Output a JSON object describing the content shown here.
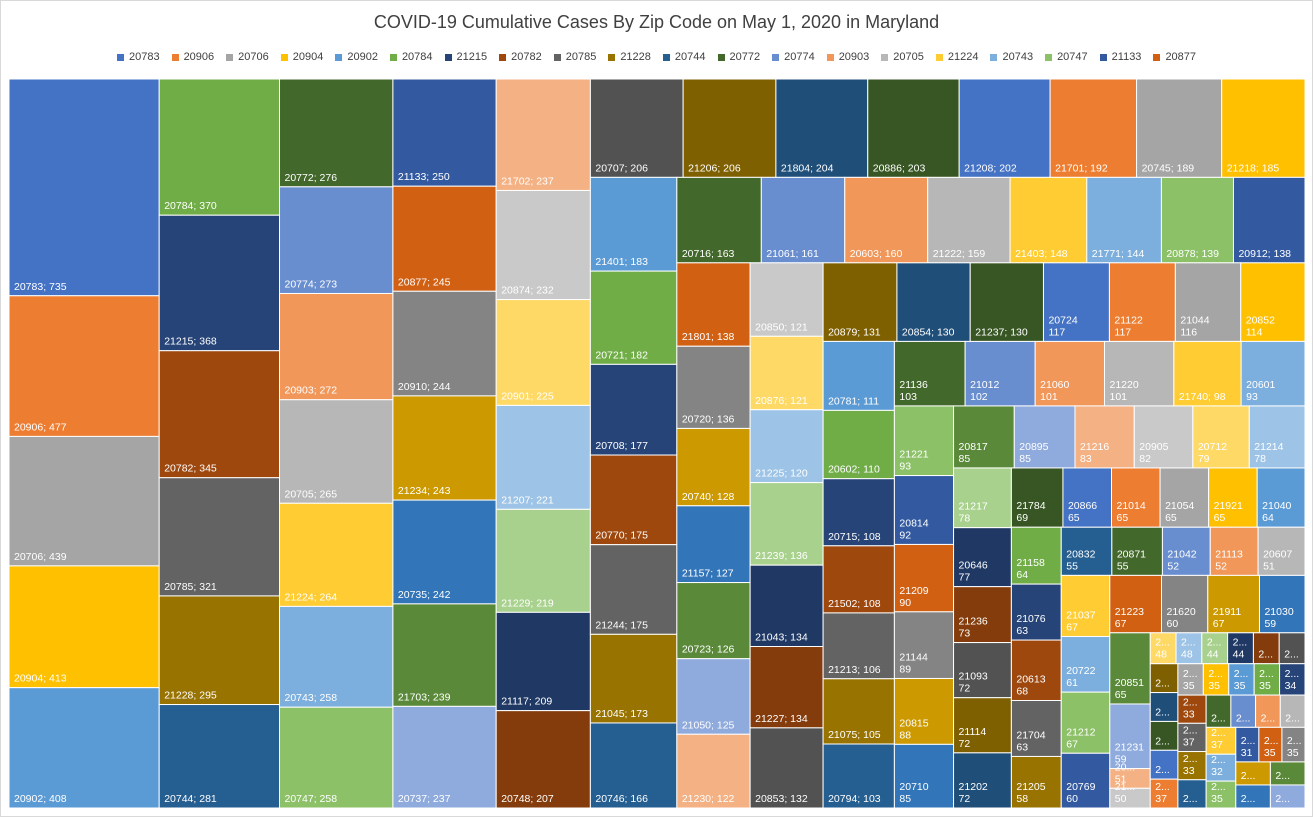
{
  "chart_data": {
    "type": "treemap",
    "title": "COVID-19 Cumulative Cases By Zip Code on May 1, 2020 in Maryland",
    "legend_position": "top",
    "legend": [
      "20783",
      "20906",
      "20706",
      "20904",
      "20902",
      "20784",
      "21215",
      "20782",
      "20785",
      "21228",
      "20744",
      "20772",
      "20774",
      "20903",
      "20705",
      "21224",
      "20743",
      "20747",
      "21133",
      "20877"
    ],
    "palette": [
      "#4472C4",
      "#ED7D31",
      "#A5A5A5",
      "#FFC000",
      "#5B9BD5",
      "#70AD47",
      "#264478",
      "#9E480E",
      "#636363",
      "#997300",
      "#255E91",
      "#43682B",
      "#698ED0",
      "#F1975A",
      "#B7B7B7",
      "#FFCD33",
      "#7CAFDD",
      "#8CC168",
      "#335AA1",
      "#D26012",
      "#848484",
      "#CC9A00",
      "#3275B9",
      "#5A8A39",
      "#8FAADC",
      "#F4B183",
      "#C9C9C9",
      "#FFD966",
      "#9DC3E6",
      "#A9D18E",
      "#1F3864",
      "#843C0C",
      "#525252",
      "#7F6000",
      "#1F4E79",
      "#375623"
    ],
    "items": [
      {
        "zip": "20783",
        "value": 735,
        "label": "20783; 735"
      },
      {
        "zip": "20906",
        "value": 477,
        "label": "20906; 477"
      },
      {
        "zip": "20706",
        "value": 439,
        "label": "20706; 439"
      },
      {
        "zip": "20904",
        "value": 413,
        "label": "20904; 413"
      },
      {
        "zip": "20902",
        "value": 408,
        "label": "20902; 408"
      },
      {
        "zip": "20784",
        "value": 370,
        "label": "20784; 370"
      },
      {
        "zip": "21215",
        "value": 368,
        "label": "21215; 368"
      },
      {
        "zip": "20782",
        "value": 345,
        "label": "20782; 345"
      },
      {
        "zip": "20785",
        "value": 321,
        "label": "20785; 321"
      },
      {
        "zip": "21228",
        "value": 295,
        "label": "21228; 295"
      },
      {
        "zip": "20744",
        "value": 281,
        "label": "20744; 281"
      },
      {
        "zip": "20772",
        "value": 276,
        "label": "20772; 276"
      },
      {
        "zip": "20774",
        "value": 273,
        "label": "20774; 273"
      },
      {
        "zip": "20903",
        "value": 272,
        "label": "20903; 272"
      },
      {
        "zip": "20705",
        "value": 265,
        "label": "20705; 265"
      },
      {
        "zip": "21224",
        "value": 264,
        "label": "21224; 264"
      },
      {
        "zip": "20743",
        "value": 258,
        "label": "20743; 258"
      },
      {
        "zip": "20747",
        "value": 258,
        "label": "20747; 258"
      },
      {
        "zip": "21133",
        "value": 250,
        "label": "21133; 250"
      },
      {
        "zip": "20877",
        "value": 245,
        "label": "20877; 245"
      },
      {
        "zip": "20910",
        "value": 244,
        "label": "20910; 244"
      },
      {
        "zip": "21234",
        "value": 243,
        "label": "21234; 243"
      },
      {
        "zip": "20735",
        "value": 242,
        "label": "20735; 242"
      },
      {
        "zip": "21703",
        "value": 239,
        "label": "21703; 239"
      },
      {
        "zip": "20737",
        "value": 237,
        "label": "20737; 237"
      },
      {
        "zip": "21702",
        "value": 237,
        "label": "21702; 237"
      },
      {
        "zip": "20874",
        "value": 232,
        "label": "20874; 232"
      },
      {
        "zip": "20901",
        "value": 225,
        "label": "20901; 225"
      },
      {
        "zip": "21207",
        "value": 221,
        "label": "21207; 221"
      },
      {
        "zip": "21229",
        "value": 219,
        "label": "21229; 219"
      },
      {
        "zip": "21117",
        "value": 209,
        "label": "21117; 209"
      },
      {
        "zip": "20748",
        "value": 207,
        "label": "20748; 207"
      },
      {
        "zip": "20707",
        "value": 206,
        "label": "20707; 206"
      },
      {
        "zip": "21206",
        "value": 206,
        "label": "21206; 206"
      },
      {
        "zip": "21804",
        "value": 204,
        "label": "21804; 204"
      },
      {
        "zip": "20886",
        "value": 203,
        "label": "20886; 203"
      },
      {
        "zip": "21208",
        "value": 202,
        "label": "21208; 202"
      },
      {
        "zip": "21701",
        "value": 192,
        "label": "21701; 192"
      },
      {
        "zip": "20745",
        "value": 189,
        "label": "20745; 189"
      },
      {
        "zip": "21218",
        "value": 185,
        "label": "21218; 185"
      },
      {
        "zip": "21401",
        "value": 183,
        "label": "21401; 183"
      },
      {
        "zip": "20721",
        "value": 182,
        "label": "20721; 182"
      },
      {
        "zip": "20708",
        "value": 177,
        "label": "20708; 177"
      },
      {
        "zip": "20770",
        "value": 175,
        "label": "20770; 175"
      },
      {
        "zip": "21244",
        "value": 175,
        "label": "21244; 175"
      },
      {
        "zip": "21045",
        "value": 173,
        "label": "21045; 173"
      },
      {
        "zip": "20746",
        "value": 166,
        "label": "20746; 166"
      },
      {
        "zip": "20716",
        "value": 163,
        "label": "20716; 163"
      },
      {
        "zip": "21061",
        "value": 161,
        "label": "21061; 161"
      },
      {
        "zip": "20603",
        "value": 160,
        "label": "20603; 160"
      },
      {
        "zip": "21222",
        "value": 159,
        "label": "21222; 159"
      },
      {
        "zip": "21403",
        "value": 148,
        "label": "21403; 148"
      },
      {
        "zip": "21771",
        "value": 144,
        "label": "21771; 144"
      },
      {
        "zip": "20878",
        "value": 139,
        "label": "20878; 139"
      },
      {
        "zip": "20912",
        "value": 138,
        "label": "20912; 138"
      },
      {
        "zip": "21801",
        "value": 138,
        "label": "21801; 138"
      },
      {
        "zip": "20720",
        "value": 136,
        "label": "20720; 136"
      },
      {
        "zip": "20740",
        "value": 128,
        "label": "20740; 128"
      },
      {
        "zip": "21157",
        "value": 127,
        "label": "21157; 127"
      },
      {
        "zip": "20723",
        "value": 126,
        "label": "20723; 126"
      },
      {
        "zip": "21050",
        "value": 125,
        "label": "21050; 125"
      },
      {
        "zip": "21230",
        "value": 122,
        "label": "21230; 122"
      },
      {
        "zip": "20850",
        "value": 121,
        "label": "20850; 121"
      },
      {
        "zip": "20876",
        "value": 121,
        "label": "20876; 121"
      },
      {
        "zip": "21225",
        "value": 120,
        "label": "21225; 120"
      },
      {
        "zip": "21239",
        "value": 136,
        "label": "21239; 136"
      },
      {
        "zip": "21043",
        "value": 134,
        "label": "21043; 134"
      },
      {
        "zip": "21227",
        "value": 134,
        "label": "21227; 134"
      },
      {
        "zip": "20853",
        "value": 132,
        "label": "20853; 132"
      },
      {
        "zip": "20879",
        "value": 131,
        "label": "20879; 131"
      },
      {
        "zip": "20854",
        "value": 130,
        "label": "20854; 130"
      },
      {
        "zip": "21237",
        "value": 130,
        "label": "21237; 130"
      },
      {
        "zip": "20724",
        "value": 117,
        "label": "20724; 117"
      },
      {
        "zip": "21122",
        "value": 117,
        "label": "21122; 117"
      },
      {
        "zip": "21044",
        "value": 116,
        "label": "21044; 116"
      },
      {
        "zip": "20852",
        "value": 114,
        "label": "20852; 114"
      },
      {
        "zip": "20781",
        "value": 111,
        "label": "20781; 111"
      },
      {
        "zip": "20602",
        "value": 110,
        "label": "20602; 110"
      },
      {
        "zip": "20715",
        "value": 108,
        "label": "20715; 108"
      },
      {
        "zip": "21502",
        "value": 108,
        "label": "21502; 108"
      },
      {
        "zip": "21213",
        "value": 106,
        "label": "21213; 106"
      },
      {
        "zip": "21075",
        "value": 105,
        "label": "21075; 105"
      },
      {
        "zip": "20794",
        "value": 103,
        "label": "20794; 103"
      },
      {
        "zip": "21136",
        "value": 103,
        "label": "21136; 103"
      },
      {
        "zip": "21012",
        "value": 102,
        "label": "21012; 102"
      },
      {
        "zip": "21060",
        "value": 101,
        "label": "21060; 101"
      },
      {
        "zip": "21220",
        "value": 101,
        "label": "21220; 101"
      },
      {
        "zip": "21740",
        "value": 98,
        "label": "21740; 98"
      },
      {
        "zip": "20601",
        "value": 93,
        "label": "20601; 93"
      },
      {
        "zip": "21221",
        "value": 93,
        "label": "21221; 93"
      },
      {
        "zip": "20814",
        "value": 92,
        "label": "20814; 92"
      },
      {
        "zip": "21209",
        "value": 90,
        "label": "21209; 90"
      },
      {
        "zip": "21144",
        "value": 89,
        "label": "21144; 89"
      },
      {
        "zip": "20815",
        "value": 88,
        "label": "20815; 88"
      },
      {
        "zip": "20710",
        "value": 85,
        "label": "20710; 85"
      },
      {
        "zip": "20817",
        "value": 85,
        "label": "20817; 85"
      },
      {
        "zip": "20895",
        "value": 85,
        "label": "20895; 85"
      },
      {
        "zip": "21216",
        "value": 83,
        "label": "21216; 83"
      },
      {
        "zip": "20905",
        "value": 82,
        "label": "20905; 82"
      },
      {
        "zip": "20712",
        "value": 79,
        "label": "20712; 79"
      },
      {
        "zip": "21214",
        "value": 78,
        "label": "21214; 78"
      },
      {
        "zip": "21217",
        "value": 78,
        "label": "21217; 78"
      },
      {
        "zip": "20646",
        "value": 77,
        "label": "20646; 77"
      },
      {
        "zip": "21236",
        "value": 73,
        "label": "21236; 73"
      },
      {
        "zip": "21093",
        "value": 72,
        "label": "21093; 72"
      },
      {
        "zip": "21114",
        "value": 72,
        "label": "21114; 72"
      },
      {
        "zip": "21202",
        "value": 72,
        "label": "21202; 72"
      },
      {
        "zip": "21784",
        "value": 69,
        "label": "21784; 69"
      },
      {
        "zip": "20866",
        "value": 65,
        "label": "20866; 65"
      },
      {
        "zip": "21014",
        "value": 65,
        "label": "21014; 65"
      },
      {
        "zip": "21054",
        "value": 65,
        "label": "21054; 65"
      },
      {
        "zip": "21921",
        "value": 65,
        "label": "21921; 65"
      },
      {
        "zip": "21040",
        "value": 64,
        "label": "21040; 64"
      },
      {
        "zip": "21158",
        "value": 64,
        "label": "21158; 64"
      },
      {
        "zip": "21076",
        "value": 63,
        "label": "21076; 63"
      },
      {
        "zip": "20613",
        "value": 68,
        "label": "20613; 68"
      },
      {
        "zip": "21704",
        "value": 63,
        "label": "21704; 63"
      },
      {
        "zip": "21205",
        "value": 58,
        "label": "21205; 58"
      },
      {
        "zip": "20832",
        "value": 55,
        "label": "20832; 55"
      },
      {
        "zip": "20871",
        "value": 55,
        "label": "20871; 55"
      },
      {
        "zip": "21042",
        "value": 52,
        "label": "21042; 52"
      },
      {
        "zip": "21113",
        "value": 52,
        "label": "21113; 52"
      },
      {
        "zip": "20607",
        "value": 51,
        "label": "20607; 51"
      },
      {
        "zip": "21037",
        "value": 67,
        "label": "21037; 67"
      },
      {
        "zip": "20722",
        "value": 61,
        "label": "20722; 61"
      },
      {
        "zip": "21212",
        "value": 67,
        "label": "21212; 67"
      },
      {
        "zip": "20769",
        "value": 60,
        "label": "20769; 60"
      },
      {
        "zip": "21223",
        "value": 67,
        "label": "21223; 67"
      },
      {
        "zip": "21620",
        "value": 60,
        "label": "21620; 60"
      },
      {
        "zip": "21911",
        "value": 67,
        "label": "21911; 67"
      },
      {
        "zip": "21030",
        "value": 59,
        "label": "21030; 59"
      },
      {
        "zip": "20851",
        "value": 65,
        "label": "20851; 65"
      },
      {
        "zip": "21231",
        "value": 59,
        "label": "21231; 59"
      }
    ],
    "truncated_labels": [
      "2087...; 51",
      "2114...; 50",
      "2120...; 48",
      "2174...; 48",
      "2110...; 44",
      "2128...; 44",
      "2103...",
      "2069...",
      "206...",
      "206...",
      "208...",
      "210...",
      "208...; 37",
      "210...; 35",
      "210...; 35",
      "214...; 35",
      "216...; 35",
      "20...; 34",
      "21...; 33",
      "210...; 37",
      "21...; 33",
      "210...",
      "210...",
      "216...",
      "21...",
      "20...",
      "212...; 37",
      "20...; 32",
      "206...; 35",
      "21...; 31",
      "206...; 35",
      "208...; 35",
      "21...",
      "20...",
      "2...",
      "2..."
    ]
  }
}
